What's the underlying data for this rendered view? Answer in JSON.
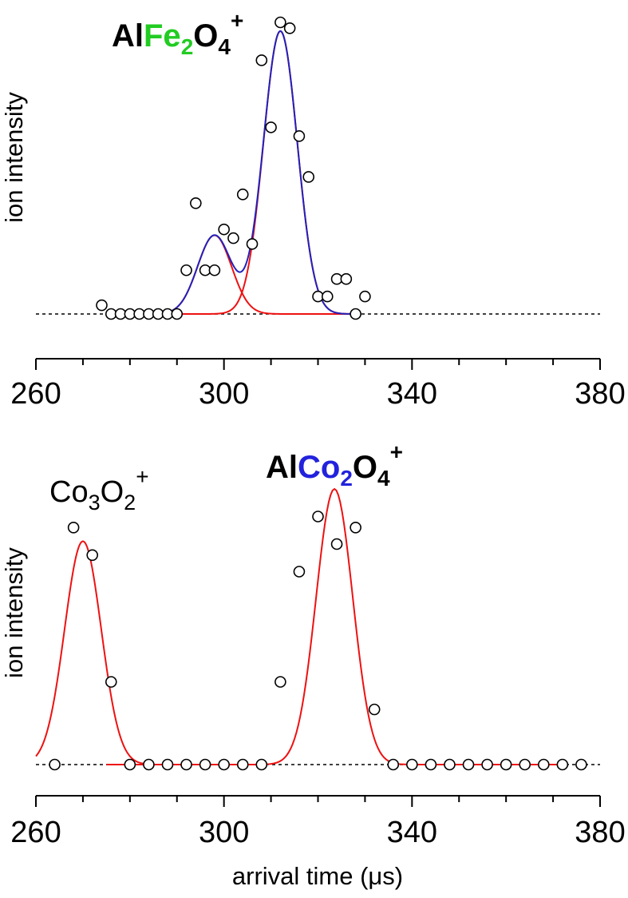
{
  "colors": {
    "envelope": "#2222bb",
    "component": "#ee1111",
    "fe_accent": "#22cc22",
    "co_accent": "#2222dd",
    "marker_edge": "#000000",
    "marker_fill": "#ffffff"
  },
  "chart_data": [
    {
      "type": "scatter",
      "panel": "top",
      "ylabel": "ion intensity",
      "xlabel": "",
      "xlim": [
        260,
        380
      ],
      "xticks": [
        "260",
        "300",
        "340",
        "380"
      ],
      "ylim": [
        -0.15,
        1.03
      ],
      "baseline": 0,
      "species": {
        "pre": "Al",
        "accent": "Fe",
        "accent_sub": "2",
        "post": "O",
        "post_sub": "4",
        "sup": "+"
      },
      "points": [
        [
          274,
          0.03
        ],
        [
          276,
          0
        ],
        [
          278,
          0
        ],
        [
          280,
          0
        ],
        [
          282,
          0
        ],
        [
          284,
          0
        ],
        [
          286,
          0
        ],
        [
          288,
          0
        ],
        [
          290,
          0
        ],
        [
          292,
          0.15
        ],
        [
          294,
          0.38
        ],
        [
          296,
          0.15
        ],
        [
          298,
          0.15
        ],
        [
          300,
          0.29
        ],
        [
          302,
          0.26
        ],
        [
          304,
          0.41
        ],
        [
          306,
          0.24
        ],
        [
          308,
          0.87
        ],
        [
          310,
          0.64
        ],
        [
          312,
          1.0
        ],
        [
          314,
          0.98
        ],
        [
          316,
          0.61
        ],
        [
          318,
          0.47
        ],
        [
          320,
          0.06
        ],
        [
          322,
          0.06
        ],
        [
          324,
          0.12
        ],
        [
          326,
          0.12
        ],
        [
          328,
          0
        ],
        [
          330,
          0.06
        ]
      ],
      "components": [
        {
          "center": 298,
          "amplitude": 0.27,
          "sigma": 3.6,
          "range": [
            283,
            328
          ]
        },
        {
          "center": 312,
          "amplitude": 0.97,
          "sigma": 3.6,
          "range": [
            283,
            328
          ]
        }
      ],
      "envelope": {
        "range": [
          288,
          328
        ]
      }
    },
    {
      "type": "scatter",
      "panel": "bottom",
      "ylabel": "ion intensity",
      "xlabel": "arrival time (μs)",
      "xlim": [
        260,
        380
      ],
      "xticks": [
        "260",
        "300",
        "340",
        "380"
      ],
      "ylim": [
        -0.15,
        1.03
      ],
      "baseline": 0,
      "species_left": {
        "pre": "Co",
        "pre_sub": "3",
        "post": "O",
        "post_sub": "2",
        "sup": "+"
      },
      "species": {
        "pre": "Al",
        "accent": "Co",
        "accent_sub": "2",
        "post": "O",
        "post_sub": "4",
        "sup": "+"
      },
      "points": [
        [
          264,
          0
        ],
        [
          268,
          0.86
        ],
        [
          272,
          0.76
        ],
        [
          276,
          0.3
        ],
        [
          280,
          0
        ],
        [
          284,
          0
        ],
        [
          288,
          0
        ],
        [
          292,
          0
        ],
        [
          296,
          0
        ],
        [
          300,
          0
        ],
        [
          304,
          0
        ],
        [
          308,
          0
        ],
        [
          312,
          0.3
        ],
        [
          316,
          0.7
        ],
        [
          320,
          0.9
        ],
        [
          324,
          0.8
        ],
        [
          328,
          0.86
        ],
        [
          332,
          0.2
        ],
        [
          336,
          0
        ],
        [
          340,
          0
        ],
        [
          344,
          0
        ],
        [
          348,
          0
        ],
        [
          352,
          0
        ],
        [
          356,
          0
        ],
        [
          360,
          0
        ],
        [
          364,
          0
        ],
        [
          368,
          0
        ],
        [
          372,
          0
        ],
        [
          376,
          0
        ]
      ],
      "components": [
        {
          "center": 270,
          "amplitude": 0.81,
          "sigma": 3.9,
          "range": [
            260,
            284
          ]
        },
        {
          "center": 323.5,
          "amplitude": 1.0,
          "sigma": 3.9,
          "range": [
            275,
            372
          ]
        }
      ]
    }
  ]
}
